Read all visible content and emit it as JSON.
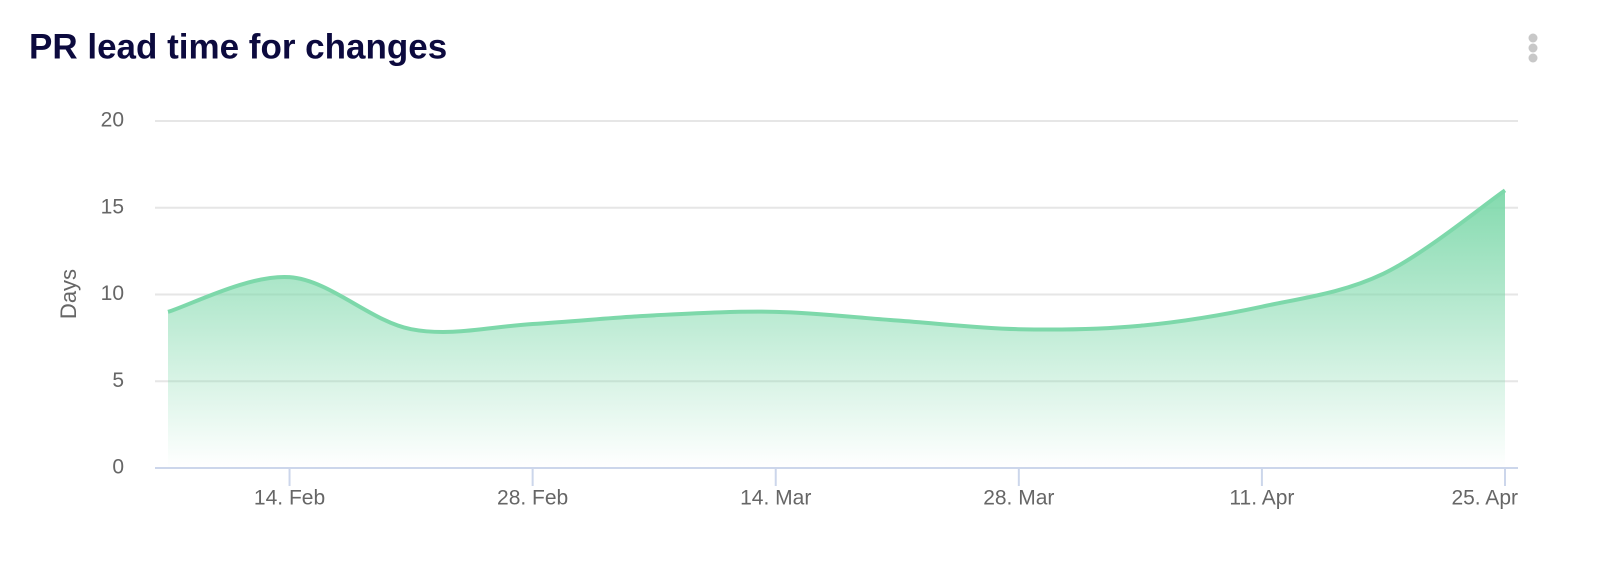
{
  "chart_data": {
    "type": "area",
    "title": "PR lead time for changes",
    "y_label": "Days",
    "categories": [
      null,
      "14. Feb",
      null,
      "28. Feb",
      null,
      "14. Mar",
      null,
      "28. Mar",
      null,
      "11. Apr",
      null,
      "25. Apr"
    ],
    "series": [
      {
        "name": "PR lead time",
        "color": "#7dd8aa",
        "values": [
          9.0,
          11.0,
          8.0,
          8.3,
          8.8,
          9.0,
          8.5,
          8.0,
          8.2,
          9.3,
          11.2,
          16.0
        ]
      }
    ],
    "ylim": [
      0,
      20
    ],
    "yticks": [
      0,
      5,
      10,
      15,
      20
    ],
    "grid": true,
    "legend": false
  }
}
